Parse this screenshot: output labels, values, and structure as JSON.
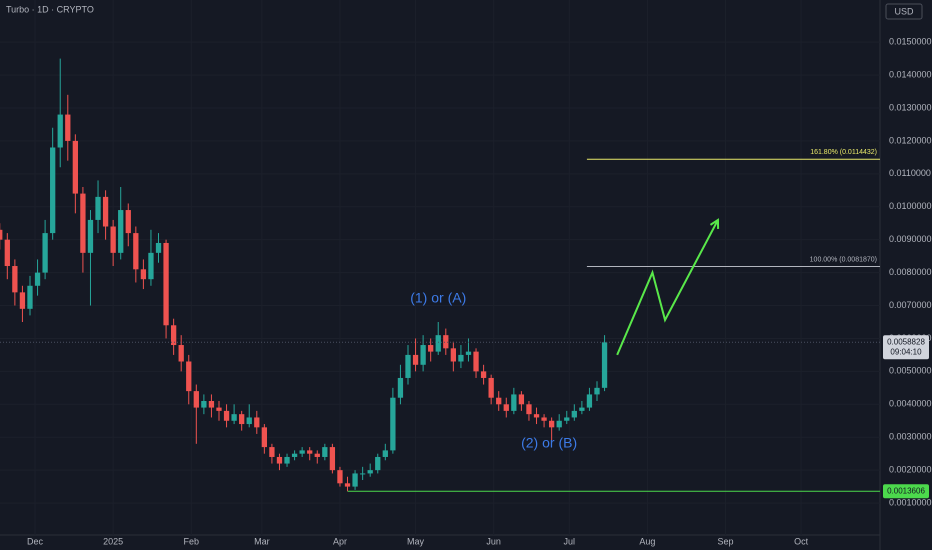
{
  "chart_data": {
    "type": "candlestick",
    "title": "Turbo · 1D · CRYPTO",
    "currency": "USD",
    "x": [
      -14,
      -11,
      -8,
      -5,
      -2,
      1,
      4,
      7,
      10,
      13,
      16,
      19,
      22,
      25,
      28,
      31,
      34,
      37,
      40,
      43,
      46,
      49,
      52,
      55,
      58,
      61,
      64,
      67,
      70,
      73,
      76,
      79,
      82,
      85,
      88,
      91,
      94,
      97,
      100,
      103,
      106,
      109,
      112,
      115,
      118,
      121,
      124,
      127,
      130,
      133,
      136,
      139,
      142,
      145,
      148,
      151,
      154,
      157,
      160,
      163,
      166,
      169,
      172,
      175,
      178,
      181,
      184,
      187,
      190,
      193,
      196,
      199,
      202,
      205,
      208,
      211,
      214,
      217,
      220,
      223,
      226
    ],
    "open": [
      0.0093,
      0.009,
      0.0082,
      0.0074,
      0.0069,
      0.0076,
      0.008,
      0.0092,
      0.0118,
      0.0128,
      0.012,
      0.0104,
      0.0086,
      0.0096,
      0.0103,
      0.0094,
      0.0086,
      0.0099,
      0.0092,
      0.0081,
      0.0078,
      0.0086,
      0.0089,
      0.0064,
      0.0058,
      0.0053,
      0.0044,
      0.0039,
      0.0041,
      0.0039,
      0.0038,
      0.0035,
      0.0037,
      0.0034,
      0.0036,
      0.0033,
      0.0027,
      0.0024,
      0.0022,
      0.0024,
      0.0025,
      0.0026,
      0.0025,
      0.0024,
      0.0027,
      0.002,
      0.0016,
      0.0015,
      0.0019,
      0.0019,
      0.002,
      0.0024,
      0.0026,
      0.0042,
      0.0048,
      0.0055,
      0.0052,
      0.0058,
      0.0056,
      0.0061,
      0.0057,
      0.0053,
      0.0055,
      0.0056,
      0.005,
      0.0048,
      0.0042,
      0.004,
      0.0038,
      0.0043,
      0.004,
      0.0037,
      0.0036,
      0.0035,
      0.0033,
      0.0035,
      0.0036,
      0.0038,
      0.0039,
      0.0043,
      0.0045
    ],
    "high": [
      0.0095,
      0.0092,
      0.0084,
      0.0076,
      0.0079,
      0.0084,
      0.0096,
      0.0124,
      0.0145,
      0.0134,
      0.0122,
      0.0106,
      0.0099,
      0.0108,
      0.0105,
      0.0096,
      0.0106,
      0.0101,
      0.0094,
      0.0084,
      0.0093,
      0.0092,
      0.009,
      0.0066,
      0.0061,
      0.0055,
      0.0046,
      0.0043,
      0.0043,
      0.0041,
      0.004,
      0.004,
      0.0038,
      0.004,
      0.0038,
      0.0034,
      0.0028,
      0.0025,
      0.0025,
      0.0026,
      0.0027,
      0.0027,
      0.0026,
      0.0028,
      0.0028,
      0.0021,
      0.0018,
      0.002,
      0.0021,
      0.0022,
      0.0025,
      0.0028,
      0.0045,
      0.0052,
      0.0058,
      0.006,
      0.0061,
      0.006,
      0.0065,
      0.0063,
      0.0059,
      0.0058,
      0.006,
      0.0057,
      0.0052,
      0.0049,
      0.0044,
      0.0042,
      0.0045,
      0.0044,
      0.0041,
      0.0039,
      0.0037,
      0.0036,
      0.0037,
      0.0038,
      0.004,
      0.0041,
      0.0045,
      0.0047,
      0.0061
    ],
    "low": [
      0.0087,
      0.0078,
      0.007,
      0.0065,
      0.0067,
      0.0073,
      0.0078,
      0.009,
      0.0112,
      0.0114,
      0.0098,
      0.008,
      0.007,
      0.0092,
      0.009,
      0.0082,
      0.0084,
      0.0088,
      0.0077,
      0.0075,
      0.0076,
      0.0083,
      0.006,
      0.0055,
      0.005,
      0.004,
      0.0028,
      0.0037,
      0.0036,
      0.0035,
      0.0033,
      0.0034,
      0.0032,
      0.0033,
      0.0031,
      0.0025,
      0.0022,
      0.002,
      0.0021,
      0.0023,
      0.0024,
      0.0023,
      0.0022,
      0.0023,
      0.0019,
      0.0015,
      0.00136,
      0.0014,
      0.0017,
      0.0018,
      0.0019,
      0.0023,
      0.0025,
      0.004,
      0.0046,
      0.005,
      0.005,
      0.0053,
      0.0055,
      0.0055,
      0.005,
      0.0051,
      0.0053,
      0.0048,
      0.0046,
      0.004,
      0.0038,
      0.0036,
      0.0037,
      0.0038,
      0.0035,
      0.0034,
      0.0033,
      0.0029,
      0.0032,
      0.0034,
      0.0035,
      0.0037,
      0.0038,
      0.0041,
      0.0044
    ],
    "close": [
      0.009,
      0.0082,
      0.0074,
      0.0069,
      0.0076,
      0.008,
      0.0092,
      0.0118,
      0.0128,
      0.012,
      0.0104,
      0.0086,
      0.0096,
      0.0103,
      0.0094,
      0.0086,
      0.0099,
      0.0092,
      0.0081,
      0.0078,
      0.0086,
      0.0089,
      0.0064,
      0.0058,
      0.0053,
      0.0044,
      0.0039,
      0.0041,
      0.0039,
      0.0038,
      0.0035,
      0.0037,
      0.0034,
      0.0036,
      0.0033,
      0.0027,
      0.0024,
      0.0022,
      0.0024,
      0.0025,
      0.0026,
      0.0025,
      0.0024,
      0.0027,
      0.002,
      0.0016,
      0.0015,
      0.0019,
      0.0019,
      0.002,
      0.0024,
      0.0026,
      0.0042,
      0.0048,
      0.0055,
      0.0052,
      0.0058,
      0.0056,
      0.0061,
      0.0057,
      0.0053,
      0.0055,
      0.0056,
      0.005,
      0.0048,
      0.0042,
      0.004,
      0.0038,
      0.0043,
      0.004,
      0.0037,
      0.0036,
      0.0035,
      0.0033,
      0.0035,
      0.0036,
      0.0038,
      0.0039,
      0.0043,
      0.0045,
      0.0058828
    ],
    "up_color": "#26a69a",
    "down_color": "#ef5350",
    "xlim": [
      -13.9,
      335.3
    ],
    "xticks": [
      {
        "value": 0,
        "label": "Dec"
      },
      {
        "value": 31,
        "label": "2025"
      },
      {
        "value": 62,
        "label": "Feb"
      },
      {
        "value": 90,
        "label": "Mar"
      },
      {
        "value": 121,
        "label": "Apr"
      },
      {
        "value": 151,
        "label": "May"
      },
      {
        "value": 182,
        "label": "Jun"
      },
      {
        "value": 212,
        "label": "Jul"
      },
      {
        "value": 243,
        "label": "Aug"
      },
      {
        "value": 274,
        "label": "Sep"
      },
      {
        "value": 304,
        "label": "Oct"
      }
    ],
    "ylim": [
      3e-05,
      0.01628
    ],
    "yticks": [
      {
        "value": 0.001,
        "label": "0.0010000"
      },
      {
        "value": 0.002,
        "label": "0.0020000"
      },
      {
        "value": 0.003,
        "label": "0.0030000"
      },
      {
        "value": 0.004,
        "label": "0.0040000"
      },
      {
        "value": 0.005,
        "label": "0.0050000"
      },
      {
        "value": 0.006,
        "label": "0.0060000"
      },
      {
        "value": 0.007,
        "label": "0.0070000"
      },
      {
        "value": 0.008,
        "label": "0.0080000"
      },
      {
        "value": 0.009,
        "label": "0.0090000"
      },
      {
        "value": 0.01,
        "label": "0.0100000"
      },
      {
        "value": 0.011,
        "label": "0.0110000"
      },
      {
        "value": 0.012,
        "label": "0.0120000"
      },
      {
        "value": 0.013,
        "label": "0.0130000"
      },
      {
        "value": 0.014,
        "label": "0.0140000"
      },
      {
        "value": 0.015,
        "label": "0.0150000"
      }
    ],
    "grid": true,
    "last_price_label": "0.0058828",
    "countdown": "09:04:10",
    "support": {
      "value": 0.0013606,
      "label": "0.0013606",
      "start": 124,
      "color": "#4cd94c"
    },
    "fib_levels": [
      {
        "value": 0.0114432,
        "label": "161.80% (0.0114432)",
        "start": 219,
        "color": "#e9e96a"
      },
      {
        "value": 0.008187,
        "label": "100.00% (0.0081870)",
        "start": 219,
        "color": "#b2b5be"
      }
    ],
    "annotations": [
      {
        "text": "(1) or (A)",
        "x": 160,
        "y": 0.0072
      },
      {
        "text": "(2) or (B)",
        "x": 204,
        "y": 0.0028
      }
    ],
    "projection": {
      "x": [
        231,
        245,
        250,
        271
      ],
      "y": [
        0.0055,
        0.008,
        0.00656,
        0.0096
      ],
      "color": "#59e84a"
    }
  }
}
